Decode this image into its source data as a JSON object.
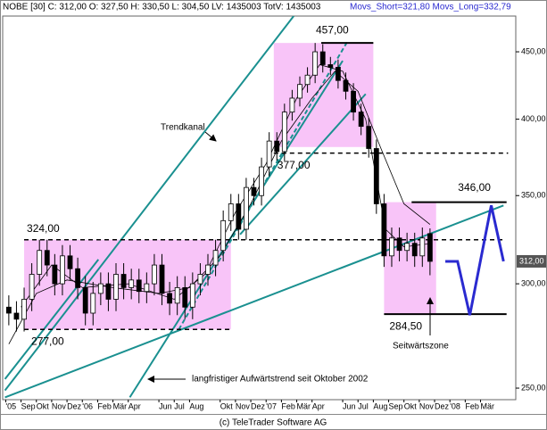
{
  "chart_data": {
    "type": "candlestick",
    "header": "NOBE [30] C: 312,00 O: 327,50 H: 330,50 L: 304,50 LV: 1435003 TotV: 1435003",
    "indicators": "Movs_Short=321,80 Movs_Long=332,79",
    "footer": "(c) TeleTrader Software AG",
    "log_scale": true,
    "ylim": [
      245,
      479
    ],
    "yticks": [
      {
        "value": 250,
        "label": "250,00"
      },
      {
        "value": 300,
        "label": "300,00"
      },
      {
        "value": 350,
        "label": "350,00"
      },
      {
        "value": 400,
        "label": "400,00"
      },
      {
        "value": 450,
        "label": "450,00"
      }
    ],
    "xlim": [
      -0.2,
      33.3
    ],
    "xticks": [
      {
        "value": 0,
        "label": "'05"
      },
      {
        "value": 1,
        "label": "Sep"
      },
      {
        "value": 2,
        "label": "Okt"
      },
      {
        "value": 3,
        "label": "Nov"
      },
      {
        "value": 4,
        "label": "Dez"
      },
      {
        "value": 5,
        "label": "'06"
      },
      {
        "value": 6,
        "label": "Feb"
      },
      {
        "value": 7,
        "label": "Mär"
      },
      {
        "value": 8,
        "label": "Apr"
      },
      {
        "value": 10,
        "label": "Jun"
      },
      {
        "value": 11,
        "label": "Jul"
      },
      {
        "value": 12,
        "label": "Aug"
      },
      {
        "value": 14,
        "label": "Okt"
      },
      {
        "value": 15,
        "label": "Nov"
      },
      {
        "value": 16,
        "label": "Dez"
      },
      {
        "value": 17,
        "label": "'07"
      },
      {
        "value": 18,
        "label": "Feb"
      },
      {
        "value": 19,
        "label": "Mär"
      },
      {
        "value": 20,
        "label": "Apr"
      },
      {
        "value": 22,
        "label": "Jun"
      },
      {
        "value": 23,
        "label": "Jul"
      },
      {
        "value": 24,
        "label": "Aug"
      },
      {
        "value": 25,
        "label": "Sep"
      },
      {
        "value": 26,
        "label": "Okt"
      },
      {
        "value": 27,
        "label": "Nov"
      },
      {
        "value": 28,
        "label": "Dez"
      },
      {
        "value": 29,
        "label": "'08"
      },
      {
        "value": 30,
        "label": "Feb"
      },
      {
        "value": 31,
        "label": "Mär"
      }
    ],
    "up_color": "#ffffff",
    "down_color": "#000000",
    "candles": {
      "x": [
        0.2,
        0.7,
        1.2,
        1.7,
        2.2,
        2.7,
        3.2,
        3.7,
        4.2,
        4.7,
        5.2,
        5.7,
        6.2,
        6.7,
        7.2,
        7.7,
        8.2,
        8.7,
        9.2,
        9.7,
        10.2,
        10.7,
        11.2,
        11.7,
        12.2,
        12.7,
        13.2,
        13.7,
        14.2,
        14.7,
        15.2,
        15.7,
        16.2,
        16.7,
        17.2,
        17.7,
        18.2,
        18.7,
        19.2,
        19.7,
        20.2,
        20.7,
        21.2,
        21.7,
        22.2,
        22.7,
        23.2,
        23.7,
        24.2,
        24.7,
        25.2,
        25.7,
        26.2,
        26.7,
        27.2,
        27.7
      ],
      "open": [
        288,
        285,
        282,
        292,
        305,
        318,
        310,
        300,
        315,
        308,
        298,
        285,
        295,
        300,
        292,
        305,
        298,
        302,
        296,
        300,
        310,
        295,
        290,
        298,
        288,
        300,
        305,
        310,
        318,
        335,
        345,
        330,
        355,
        350,
        368,
        385,
        378,
        405,
        415,
        425,
        432,
        450,
        440,
        438,
        428,
        420,
        405,
        395,
        380,
        345,
        315,
        325,
        318,
        322,
        315,
        327.5
      ],
      "high": [
        294,
        291,
        298,
        311,
        324,
        324,
        316,
        321,
        321,
        314,
        304,
        301,
        306,
        306,
        311,
        311,
        308,
        308,
        306,
        316,
        316,
        301,
        304,
        304,
        306,
        311,
        316,
        324,
        341,
        351,
        351,
        361,
        361,
        374,
        391,
        391,
        411,
        421,
        431,
        438,
        457,
        456,
        446,
        444,
        434,
        426,
        411,
        401,
        386,
        351,
        331,
        331,
        328,
        328,
        331,
        330.5
      ],
      "low": [
        279,
        276,
        276,
        286,
        299,
        304,
        294,
        294,
        302,
        292,
        279,
        279,
        289,
        286,
        286,
        292,
        292,
        290,
        290,
        294,
        289,
        284,
        284,
        282,
        282,
        294,
        299,
        304,
        312,
        329,
        324,
        324,
        344,
        344,
        362,
        372,
        372,
        399,
        409,
        419,
        426,
        434,
        432,
        422,
        414,
        399,
        389,
        374,
        339,
        309,
        309,
        312,
        312,
        309,
        309,
        304.5
      ],
      "close": [
        285,
        282,
        292,
        305,
        318,
        310,
        300,
        315,
        308,
        298,
        285,
        295,
        300,
        292,
        305,
        298,
        302,
        296,
        300,
        310,
        295,
        290,
        298,
        288,
        300,
        305,
        310,
        318,
        335,
        345,
        330,
        355,
        350,
        368,
        385,
        378,
        405,
        415,
        425,
        432,
        450,
        440,
        438,
        428,
        420,
        405,
        395,
        380,
        345,
        315,
        325,
        318,
        322,
        315,
        325,
        312
      ]
    },
    "series": [
      {
        "name": "Movs_Long",
        "color": "#000000",
        "x": [
          0.2,
          2,
          4,
          7,
          10,
          12,
          14,
          16,
          18,
          20,
          21.5,
          23,
          24.5,
          26,
          27.7
        ],
        "values": [
          270,
          295,
          302,
          298,
          295,
          298,
          315,
          345,
          385,
          415,
          435,
          420,
          380,
          345,
          332.79
        ]
      },
      {
        "name": "Movs_Short",
        "color": "#000000",
        "x": [
          1,
          3,
          5,
          8,
          11,
          13,
          15,
          17,
          19,
          20.5,
          22,
          23.5,
          24.8,
          26,
          27.7
        ],
        "values": [
          288,
          310,
          298,
          300,
          292,
          305,
          340,
          370,
          415,
          440,
          435,
          400,
          330,
          320,
          321.8
        ]
      }
    ],
    "box_color": "#f8c4f8",
    "boxes": [
      {
        "x": [
          1.2,
          14.7
        ],
        "y": [
          277,
          324
        ]
      },
      {
        "x": [
          17.5,
          24
        ],
        "y": [
          381,
          457
        ]
      },
      {
        "x": [
          24.7,
          28.1
        ],
        "y": [
          284.5,
          346
        ]
      }
    ],
    "levels": [
      {
        "value": 324,
        "label": "324,00",
        "x": [
          1.2,
          32.5
        ],
        "dashed": true
      },
      {
        "value": 277,
        "label": "277,00",
        "x": [
          1.2,
          14.7
        ],
        "dashed": true
      },
      {
        "value": 457,
        "label": "457,00",
        "x": [
          20.6,
          24
        ],
        "dashed": false
      },
      {
        "value": 377,
        "label": "377,00",
        "x": [
          17.5,
          32.8
        ],
        "dashed": true
      },
      {
        "value": 346,
        "label": "346,00",
        "x": [
          26.5,
          32.7
        ],
        "dashed": false
      },
      {
        "value": 284.5,
        "label": "284,50",
        "x": [
          24.7,
          32.7
        ],
        "dashed": false
      }
    ],
    "trend_color": "#1a9090",
    "trendlines": [
      {
        "x": [
          -0.05,
          32.5
        ],
        "y": [
          246,
          344
        ],
        "dashed": false
      },
      {
        "x": [
          -0.05,
          18.8
        ],
        "y": [
          249,
          479
        ],
        "dashed": false
      },
      {
        "x": [
          8.1,
          22.0
        ],
        "y": [
          246,
          443
        ],
        "dashed": false
      },
      {
        "x": [
          11.3,
          22.3
        ],
        "y": [
          277,
          458
        ],
        "dashed": true
      },
      {
        "x": [
          -0.05,
          6.05
        ],
        "y": [
          254,
          313
        ],
        "dashed": false
      },
      {
        "x": [
          15.3,
          23.5
        ],
        "y": [
          327,
          418
        ],
        "dashed": false
      }
    ],
    "projection": {
      "color": "#2a2ad0",
      "x": [
        28.7,
        29.5,
        30.3,
        31.7,
        32.5
      ],
      "values": [
        312,
        312,
        284,
        344,
        312
      ]
    },
    "last_price": {
      "value": 312,
      "label": "312,00"
    },
    "annotations": [
      "Trendkanal",
      "Seitwärtszone",
      "langfristiger Aufwärtstrend seit Oktober 2002"
    ]
  }
}
